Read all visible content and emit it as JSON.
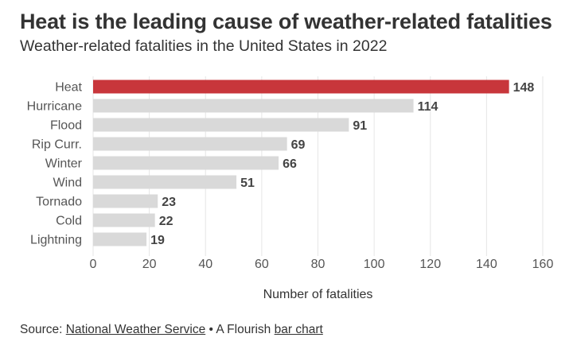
{
  "title": "Heat is the leading cause of weather-related fatalities",
  "subtitle": "Weather-related fatalities in the United States in 2022",
  "footer": {
    "source_prefix": "Source: ",
    "source_link": "National Weather Service",
    "separator": " • A Flourish ",
    "chart_link": "bar chart"
  },
  "colors": {
    "highlight": "#c8363b",
    "bar": "#d9d9d9",
    "grid": "#e6e6e6",
    "text": "#333333"
  },
  "chart_data": {
    "type": "bar",
    "orientation": "horizontal",
    "categories": [
      "Heat",
      "Hurricane",
      "Flood",
      "Rip Curr.",
      "Winter",
      "Wind",
      "Tornado",
      "Cold",
      "Lightning"
    ],
    "values": [
      148,
      114,
      91,
      69,
      66,
      51,
      23,
      22,
      19
    ],
    "highlight": "Heat",
    "xlabel": "Number of fatalities",
    "xlim": [
      0,
      160
    ],
    "xticks": [
      0,
      20,
      40,
      60,
      80,
      100,
      120,
      140,
      160
    ],
    "grid": true
  }
}
